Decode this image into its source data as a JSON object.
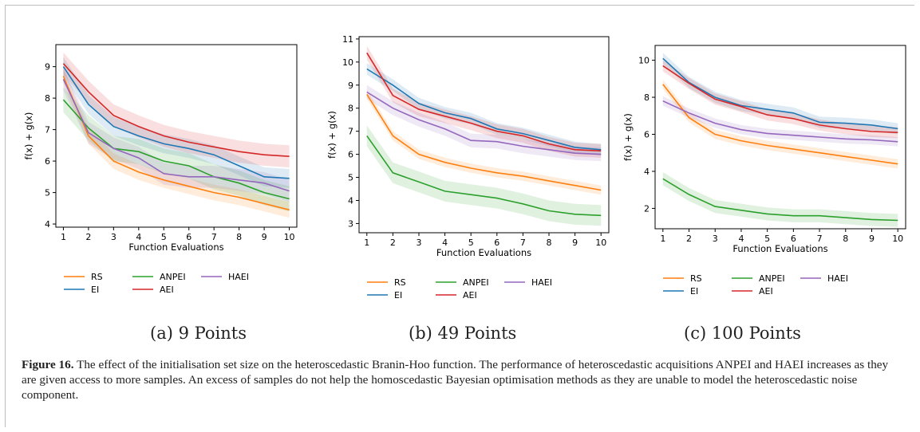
{
  "figure": {
    "label": "Figure 16.",
    "caption": "The effect of the initialisation set size on the heteroscedastic Branin-Hoo function. The performance of heteroscedastic acquisitions ANPEI and HAEI increases as they are given access to more samples. An excess of samples do not help the homoscedastic Bayesian optimisation methods as they are unable to model the heteroscedastic noise component."
  },
  "colors": {
    "RS": "#ff7f0e",
    "EI": "#1f77b4",
    "ANPEI": "#2ca02c",
    "AEI": "#d62728",
    "HAEI": "#9467bd"
  },
  "chart_data": [
    {
      "type": "line",
      "subcaption": "(a) 9 Points",
      "xlabel": "Function Evaluations",
      "ylabel": "f(x) + g(x)",
      "xlim": [
        0.7,
        10.3
      ],
      "ylim": [
        3.9,
        9.7
      ],
      "yticks": [
        4,
        5,
        6,
        7,
        8,
        9
      ],
      "x": [
        1,
        2,
        3,
        4,
        5,
        6,
        7,
        8,
        9,
        10
      ],
      "legend": [
        "RS",
        "ANPEI",
        "HAEI",
        "EI",
        "AEI"
      ],
      "series": [
        {
          "name": "RS",
          "values": [
            8.7,
            6.8,
            6.0,
            5.65,
            5.4,
            5.2,
            5.0,
            4.85,
            4.65,
            4.45
          ],
          "band": 0.25
        },
        {
          "name": "EI",
          "values": [
            9.0,
            7.8,
            7.1,
            6.8,
            6.55,
            6.4,
            6.2,
            5.85,
            5.5,
            5.45
          ],
          "band": 0.3
        },
        {
          "name": "ANPEI",
          "values": [
            7.95,
            7.05,
            6.4,
            6.3,
            6.0,
            5.85,
            5.5,
            5.3,
            5.0,
            4.8
          ],
          "band": 0.4
        },
        {
          "name": "AEI",
          "values": [
            9.1,
            8.2,
            7.45,
            7.1,
            6.8,
            6.6,
            6.45,
            6.3,
            6.2,
            6.15
          ],
          "band": 0.35
        },
        {
          "name": "HAEI",
          "values": [
            8.6,
            6.9,
            6.4,
            6.1,
            5.6,
            5.5,
            5.5,
            5.4,
            5.3,
            5.05
          ],
          "band": 0.35
        }
      ]
    },
    {
      "type": "line",
      "subcaption": "(b) 49 Points",
      "xlabel": "Function Evaluations",
      "ylabel": "f(x) + g(x)",
      "xlim": [
        0.7,
        10.3
      ],
      "ylim": [
        2.6,
        11.1
      ],
      "yticks": [
        3,
        4,
        5,
        6,
        7,
        8,
        9,
        10,
        11
      ],
      "x": [
        1,
        2,
        3,
        4,
        5,
        6,
        7,
        8,
        9,
        10
      ],
      "legend": [
        "RS",
        "ANPEI",
        "HAEI",
        "EI",
        "AEI"
      ],
      "series": [
        {
          "name": "RS",
          "values": [
            8.6,
            6.8,
            6.0,
            5.65,
            5.4,
            5.2,
            5.05,
            4.85,
            4.65,
            4.45
          ],
          "band": 0.2
        },
        {
          "name": "EI",
          "values": [
            9.7,
            9.0,
            8.2,
            7.8,
            7.55,
            7.1,
            6.9,
            6.6,
            6.3,
            6.2
          ],
          "band": 0.25
        },
        {
          "name": "ANPEI",
          "values": [
            6.8,
            5.2,
            4.8,
            4.4,
            4.25,
            4.1,
            3.85,
            3.55,
            3.4,
            3.35
          ],
          "band": 0.45
        },
        {
          "name": "AEI",
          "values": [
            10.4,
            8.55,
            7.95,
            7.65,
            7.35,
            7.0,
            6.8,
            6.45,
            6.2,
            6.15
          ],
          "band": 0.3
        },
        {
          "name": "HAEI",
          "values": [
            8.7,
            8.0,
            7.5,
            7.1,
            6.6,
            6.55,
            6.35,
            6.2,
            6.05,
            6.0
          ],
          "band": 0.3
        }
      ]
    },
    {
      "type": "line",
      "subcaption": "(c) 100 Points",
      "xlabel": "Function Evaluations",
      "ylabel": "f(x) + g(x)",
      "xlim": [
        0.7,
        10.3
      ],
      "ylim": [
        0.9,
        10.8
      ],
      "yticks": [
        2,
        4,
        6,
        8,
        10
      ],
      "x": [
        1,
        2,
        3,
        4,
        5,
        6,
        7,
        8,
        9,
        10
      ],
      "legend": [
        "RS",
        "ANPEI",
        "HAEI",
        "EI",
        "AEI"
      ],
      "series": [
        {
          "name": "RS",
          "values": [
            8.7,
            6.9,
            6.0,
            5.65,
            5.4,
            5.2,
            5.0,
            4.8,
            4.6,
            4.4
          ],
          "band": 0.25
        },
        {
          "name": "EI",
          "values": [
            10.1,
            8.8,
            8.0,
            7.55,
            7.35,
            7.15,
            6.65,
            6.6,
            6.5,
            6.3
          ],
          "band": 0.3
        },
        {
          "name": "ANPEI",
          "values": [
            3.6,
            2.75,
            2.1,
            1.9,
            1.7,
            1.6,
            1.6,
            1.5,
            1.4,
            1.35
          ],
          "band": 0.35
        },
        {
          "name": "AEI",
          "values": [
            9.7,
            8.75,
            7.9,
            7.5,
            7.05,
            6.85,
            6.5,
            6.3,
            6.15,
            6.1
          ],
          "band": 0.3
        },
        {
          "name": "HAEI",
          "values": [
            7.8,
            7.15,
            6.6,
            6.25,
            6.05,
            5.95,
            5.85,
            5.75,
            5.7,
            5.6
          ],
          "band": 0.25
        }
      ]
    }
  ]
}
